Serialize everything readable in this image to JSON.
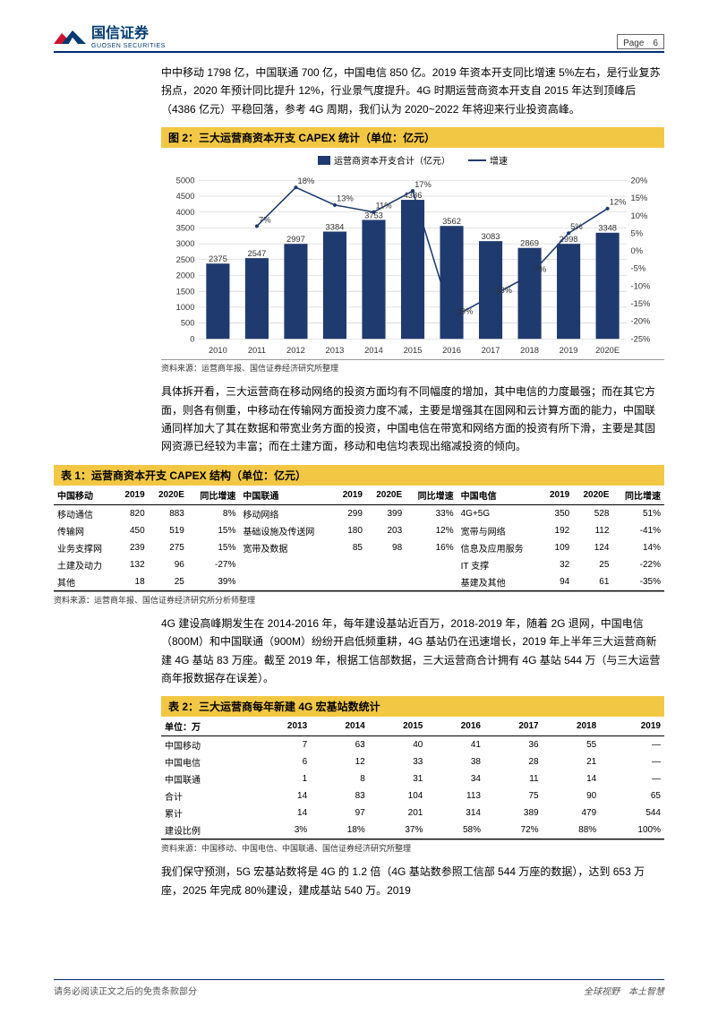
{
  "header": {
    "company_cn": "国信证券",
    "company_en": "GUOSEN SECURITIES",
    "page_label": "Page　6"
  },
  "para1": "中中移动 1798 亿，中国联通 700 亿，中国电信 850 亿。2019 年资本开支同比增速 5%左右，是行业复苏拐点，2020 年预计同比提升 12%，行业景气度提升。4G 时期运营商资本开支自 2015 年达到顶峰后（4386 亿元）平稳回落，参考 4G 周期，我们认为 2020~2022 年将迎来行业投资高峰。",
  "fig2": {
    "title": "图 2：三大运营商资本开支 CAPEX 统计（单位：亿元）",
    "legend_bar": "运营商资本开支合计（亿元）",
    "legend_line": "增速",
    "source": "资料来源：运营商年报、国信证券经济研究所整理",
    "chart": {
      "categories": [
        "2010",
        "2011",
        "2012",
        "2013",
        "2014",
        "2015",
        "2016",
        "2017",
        "2018",
        "2019",
        "2020E"
      ],
      "bar_values": [
        2375,
        2547,
        2997,
        3384,
        3753,
        4386,
        3562,
        3083,
        2869,
        2998,
        3348
      ],
      "line_pct": [
        null,
        7,
        18,
        13,
        11,
        17,
        -19,
        -13,
        -7,
        5,
        12
      ],
      "bar_color": "#1f3a6e",
      "line_color": "#1f3a6e",
      "y_left": {
        "min": 0,
        "max": 5000,
        "step": 500
      },
      "y_right": {
        "min": -25,
        "max": 20,
        "step": 5
      },
      "bg": "#ffffff",
      "grid_color": "#c9c9c9",
      "label_fontsize": 9
    }
  },
  "para2": "具体拆开看，三大运营商在移动网络的投资方面均有不同幅度的增加，其中电信的力度最强；而在其它方面，则各有侧重，中移动在传输网方面投资力度不减，主要是增强其在固网和云计算方面的能力，中国联通同样加大了其在数据和带宽业务方面的投资，中国电信在带宽和网络方面的投资有所下滑，主要是其固网资源已经较为丰富；而在土建方面，移动和电信均表现出缩减投资的倾向。",
  "table1": {
    "title": "表 1：运营商资本开支 CAPEX 结构（单位：亿元）",
    "headers": [
      "中国移动",
      "2019",
      "2020E",
      "同比增速",
      "中国联通",
      "2019",
      "2020E",
      "同比增速",
      "中国电信",
      "2019",
      "2020E",
      "同比增速"
    ],
    "rows": [
      [
        "移动通信",
        "820",
        "883",
        "8%",
        "移动网络",
        "299",
        "399",
        "33%",
        "4G+5G",
        "350",
        "528",
        "51%"
      ],
      [
        "传输网",
        "450",
        "519",
        "15%",
        "基础设施及传送网",
        "180",
        "203",
        "12%",
        "宽带与网络",
        "192",
        "112",
        "-41%"
      ],
      [
        "业务支撑网",
        "239",
        "275",
        "15%",
        "宽带及数据",
        "85",
        "98",
        "16%",
        "信息及应用服务",
        "109",
        "124",
        "14%"
      ],
      [
        "土建及动力",
        "132",
        "96",
        "-27%",
        "",
        "",
        "",
        "",
        "IT 支撑",
        "32",
        "25",
        "-22%"
      ],
      [
        "其他",
        "18",
        "25",
        "39%",
        "",
        "",
        "",
        "",
        "基建及其他",
        "94",
        "61",
        "-35%"
      ]
    ],
    "source": "资料来源：运营商年报、国信证券经济研究所分析师整理"
  },
  "para3": "4G 建设高峰期发生在 2014-2016 年，每年建设基站近百万，2018-2019 年，随着 2G 退网，中国电信（800M）和中国联通（900M）纷纷开启低频重耕，4G 基站仍在迅速增长，2019 年上半年三大运营商新建 4G 基站 83 万座。截至 2019 年，根据工信部数据，三大运营商合计拥有 4G 基站 544 万（与三大运营商年报数据存在误差）。",
  "table2": {
    "title": "表 2：三大运营商每年新建 4G 宏基站数统计",
    "headers": [
      "单位：万",
      "2013",
      "2014",
      "2015",
      "2016",
      "2017",
      "2018",
      "2019"
    ],
    "rows": [
      [
        "中国移动",
        "7",
        "63",
        "40",
        "41",
        "36",
        "55",
        "—"
      ],
      [
        "中国电信",
        "6",
        "12",
        "33",
        "38",
        "28",
        "21",
        "—"
      ],
      [
        "中国联通",
        "1",
        "8",
        "31",
        "34",
        "11",
        "14",
        "—"
      ],
      [
        "合计",
        "14",
        "83",
        "104",
        "113",
        "75",
        "90",
        "65"
      ],
      [
        "累计",
        "14",
        "97",
        "201",
        "314",
        "389",
        "479",
        "544"
      ],
      [
        "建设比例",
        "3%",
        "18%",
        "37%",
        "58%",
        "72%",
        "88%",
        "100%"
      ]
    ],
    "source": "资料来源：中国移动、中国电信、中国联通、国信证券经济研究所整理"
  },
  "para4": "我们保守预测，5G 宏基站数将是 4G 的 1.2 倍（4G 基站数参照工信部 544 万座的数据），达到 653 万座，2025 年完成 80%建设，建成基站 540 万。2019",
  "footer": {
    "left": "请务必阅读正文之后的免责条款部分",
    "right": "全球视野　本土智慧"
  }
}
